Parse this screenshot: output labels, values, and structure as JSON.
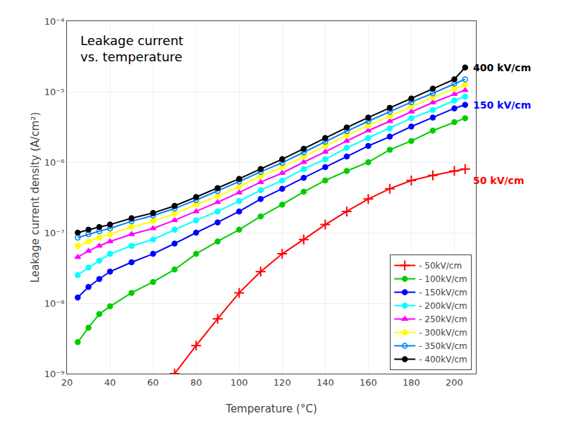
{
  "chart_data": {
    "type": "line",
    "title": "Leakage current\nvs. temperature",
    "x_label": "Temperature (°C)",
    "y_label": "Leakage current density (A/cm²)",
    "log": "y",
    "grid": true,
    "legend": "lower right",
    "xlim": [
      20,
      210
    ],
    "xticks": [
      20,
      40,
      60,
      80,
      100,
      120,
      140,
      160,
      180,
      200
    ],
    "ylim": [
      1e-09,
      0.0001
    ],
    "yticks": [
      {
        "value": 1e-09,
        "label": "10⁻⁹"
      },
      {
        "value": 1e-08,
        "label": "10⁻⁸"
      },
      {
        "value": 1e-07,
        "label": "10⁻⁷"
      },
      {
        "value": 1e-06,
        "label": "10⁻⁶"
      },
      {
        "value": 1e-05,
        "label": "10⁻⁵"
      },
      {
        "value": 0.0001,
        "label": "10⁻⁴"
      }
    ],
    "series": [
      {
        "name": "- 50kV/cm",
        "color": "red",
        "marker": "plus",
        "x": [
          70,
          80,
          90,
          100,
          110,
          120,
          130,
          140,
          150,
          160,
          170,
          180,
          190,
          200,
          205
        ],
        "values": [
          1e-09,
          2.5e-09,
          6e-09,
          1.4e-08,
          2.8e-08,
          5e-08,
          8e-08,
          1.3e-07,
          2e-07,
          3e-07,
          4.2e-07,
          5.5e-07,
          6.5e-07,
          7.5e-07,
          8e-07
        ]
      },
      {
        "name": "- 100kV/cm",
        "color": "#00cc00",
        "marker": "circle",
        "x": [
          25,
          30,
          35,
          40,
          50,
          60,
          70,
          80,
          90,
          100,
          110,
          120,
          130,
          140,
          150,
          160,
          170,
          180,
          190,
          200,
          205
        ],
        "values": [
          2.8e-09,
          4.5e-09,
          7e-09,
          9e-09,
          1.4e-08,
          2e-08,
          3e-08,
          5e-08,
          7.5e-08,
          1.1e-07,
          1.7e-07,
          2.5e-07,
          3.8e-07,
          5.5e-07,
          7.5e-07,
          1e-06,
          1.5e-06,
          2e-06,
          2.8e-06,
          3.7e-06,
          4.2e-06
        ]
      },
      {
        "name": "- 150kV/cm",
        "color": "blue",
        "marker": "circle",
        "x": [
          25,
          30,
          35,
          40,
          50,
          60,
          70,
          80,
          90,
          100,
          110,
          120,
          130,
          140,
          150,
          160,
          170,
          180,
          190,
          200,
          205
        ],
        "values": [
          1.2e-08,
          1.7e-08,
          2.2e-08,
          2.8e-08,
          3.8e-08,
          5e-08,
          7e-08,
          1e-07,
          1.4e-07,
          2e-07,
          3e-07,
          4.2e-07,
          6e-07,
          8.5e-07,
          1.2e-06,
          1.7e-06,
          2.3e-06,
          3.2e-06,
          4.3e-06,
          5.8e-06,
          6.5e-06
        ]
      },
      {
        "name": "- 200kV/cm",
        "color": "cyan",
        "marker": "circle",
        "x": [
          25,
          30,
          35,
          40,
          50,
          60,
          70,
          80,
          90,
          100,
          110,
          120,
          130,
          140,
          150,
          160,
          170,
          180,
          190,
          200,
          205
        ],
        "values": [
          2.5e-08,
          3.2e-08,
          4e-08,
          5e-08,
          6.5e-08,
          8e-08,
          1.1e-07,
          1.5e-07,
          2e-07,
          2.8e-07,
          4e-07,
          5.5e-07,
          8e-07,
          1.1e-06,
          1.6e-06,
          2.2e-06,
          3e-06,
          4.2e-06,
          5.5e-06,
          7.5e-06,
          8.5e-06
        ]
      },
      {
        "name": "- 250kV/cm",
        "color": "magenta",
        "marker": "triangle",
        "x": [
          25,
          30,
          35,
          40,
          50,
          60,
          70,
          80,
          90,
          100,
          110,
          120,
          130,
          140,
          150,
          160,
          170,
          180,
          190,
          200,
          205
        ],
        "values": [
          4.5e-08,
          5.5e-08,
          6.5e-08,
          7.5e-08,
          9.5e-08,
          1.15e-07,
          1.5e-07,
          2e-07,
          2.7e-07,
          3.7e-07,
          5.2e-07,
          7e-07,
          1e-06,
          1.4e-06,
          2e-06,
          2.8e-06,
          3.8e-06,
          5.2e-06,
          7e-06,
          9.2e-06,
          1.05e-05
        ]
      },
      {
        "name": "- 300kV/cm",
        "color": "yellow",
        "marker": "circle",
        "x": [
          25,
          30,
          35,
          40,
          50,
          60,
          70,
          80,
          90,
          100,
          110,
          120,
          130,
          140,
          150,
          160,
          170,
          180,
          190,
          200,
          205
        ],
        "values": [
          6.5e-08,
          7.5e-08,
          8.5e-08,
          9.5e-08,
          1.2e-07,
          1.45e-07,
          1.85e-07,
          2.5e-07,
          3.3e-07,
          4.5e-07,
          6.3e-07,
          8.5e-07,
          1.2e-06,
          1.7e-06,
          2.4e-06,
          3.3e-06,
          4.5e-06,
          6.2e-06,
          8.3e-06,
          1.1e-05,
          1.25e-05
        ]
      },
      {
        "name": "- 350kV/cm",
        "color": "#007fff",
        "marker": "circle-open",
        "x": [
          25,
          30,
          35,
          40,
          50,
          60,
          70,
          80,
          90,
          100,
          110,
          120,
          130,
          140,
          150,
          160,
          170,
          180,
          190,
          200,
          205
        ],
        "values": [
          8.5e-08,
          9.5e-08,
          1.05e-07,
          1.15e-07,
          1.45e-07,
          1.75e-07,
          2.2e-07,
          2.9e-07,
          3.9e-07,
          5.3e-07,
          7.3e-07,
          9.8e-07,
          1.38e-06,
          1.95e-06,
          2.75e-06,
          3.8e-06,
          5.2e-06,
          7.1e-06,
          9.5e-06,
          1.3e-05,
          1.5e-05
        ]
      },
      {
        "name": "- 400kV/cm",
        "color": "black",
        "marker": "circle",
        "x": [
          25,
          30,
          35,
          40,
          50,
          60,
          70,
          80,
          90,
          100,
          110,
          120,
          130,
          140,
          150,
          160,
          170,
          180,
          190,
          200,
          205
        ],
        "values": [
          1e-07,
          1.1e-07,
          1.2e-07,
          1.3e-07,
          1.6e-07,
          1.9e-07,
          2.4e-07,
          3.2e-07,
          4.3e-07,
          5.8e-07,
          8e-07,
          1.1e-06,
          1.55e-06,
          2.2e-06,
          3.1e-06,
          4.3e-06,
          5.9e-06,
          8e-06,
          1.1e-05,
          1.5e-05,
          2.2e-05
        ]
      }
    ],
    "annotations": [
      {
        "text": "400 kV/cm",
        "x": 206,
        "y": 2.2e-05,
        "color": "black"
      },
      {
        "text": "150 kV/cm",
        "x": 206,
        "y": 6.5e-06,
        "color": "blue"
      },
      {
        "text": "50 kV/cm",
        "x": 206,
        "y": 5.5e-07,
        "color": "red"
      }
    ]
  }
}
